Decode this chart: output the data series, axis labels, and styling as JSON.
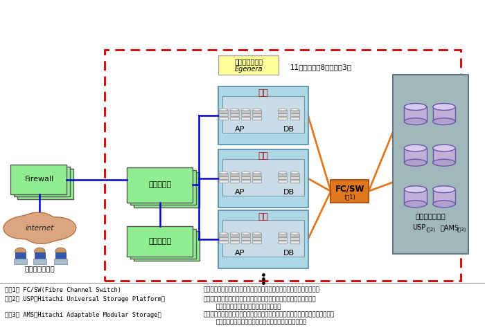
{
  "bg_color": "#ffffff",
  "blade_count_label": "11筐体（本番8・テスト3）",
  "note1_left": "（注1） FC/SW(Fibre Channel Switch)",
  "note1_right": "：高性能サーバとストレージ装置を相互接続する際に使用するスイッチ",
  "note2_left": "（注2） USP（Hitachi Universal Storage Platform）",
  "note2_right": "：ディスクアレイ装置上にストレージ仮想化機能を搭載した新世代の",
  "note2_cont": "ハイエンドディスクアレイサブシステム",
  "note3_left": "（注3） AMS（Hitachi Adaptable Modular Storage）",
  "note3_right": "：モジュラー構造による柔軟な拡張性とレプリケーション機能による高い信頼性",
  "note3_cont": "を兼ね備えたミッドレンジディスクアレイサブシステム",
  "firewall_label": "Firewall",
  "lb_label": "負荷分散機",
  "auth_label": "認証サーバ",
  "blade_label1": "ブレードサーバ",
  "blade_label2": "Egenera",
  "bank_label": "銀行",
  "trust_label": "信託",
  "sec_label": "証券",
  "fcsw_label1": "FC/SW",
  "fcsw_label2": "(注1)",
  "stor_label1": "統合ストレージ",
  "stor_label2": "USP",
  "stor_label2s": "(注2)",
  "stor_label3": "・AMS",
  "stor_label3s": "(注3)",
  "internet_label": "internet",
  "client_label": "各クライアント",
  "green": "#90ee90",
  "blade_bg": "#add8e6",
  "server_inner": "#b8d4d8",
  "orange_box": "#e07820",
  "storage_bg": "#a8c0c4",
  "yellow_box": "#ffff99",
  "red_dash": "#cc0000",
  "blue_line": "#0000cc",
  "orange_line": "#e07820",
  "cyl_face": "#c0b0d8",
  "cyl_edge": "#6655aa"
}
